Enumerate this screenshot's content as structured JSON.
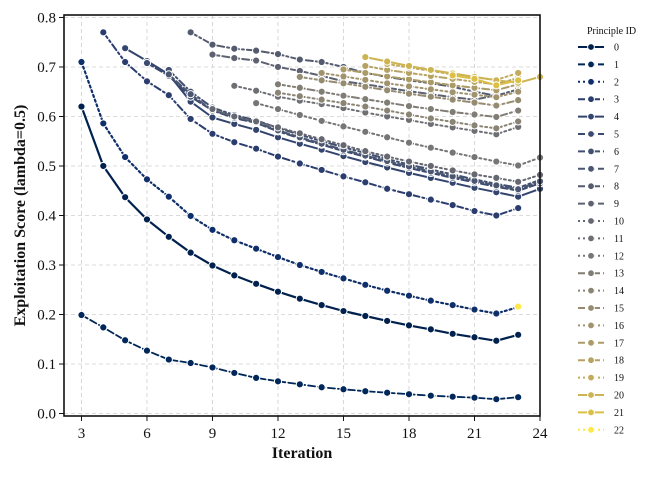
{
  "chart_data": {
    "type": "line",
    "xlabel": "Iteration",
    "ylabel": "Exploitation Score (lambda=0.5)",
    "xlim": [
      2.2,
      24
    ],
    "ylim": [
      -0.005,
      0.805
    ],
    "xticks": [
      3,
      6,
      9,
      12,
      15,
      18,
      21,
      24
    ],
    "yticks": [
      0.0,
      0.1,
      0.2,
      0.3,
      0.4,
      0.5,
      0.6,
      0.7,
      0.8
    ],
    "grid": true,
    "legend": {
      "title": "Principle ID",
      "position": "outside-right"
    },
    "series": [
      {
        "name": "0",
        "color": "#00204d",
        "dash": "solid",
        "width": 2.2,
        "start": 3,
        "values": [
          0.62,
          0.5,
          0.437,
          0.392,
          0.357,
          0.325,
          0.299,
          0.279,
          0.262,
          0.246,
          0.232,
          0.219,
          0.207,
          0.197,
          0.187,
          0.178,
          0.17,
          0.161,
          0.154,
          0.147,
          0.159
        ]
      },
      {
        "name": "1",
        "color": "#00275a",
        "dash": "longdash",
        "width": 1.8,
        "start": 3,
        "values": [
          0.199,
          0.174,
          0.148,
          0.127,
          0.109,
          0.102,
          0.093,
          0.082,
          0.072,
          0.065,
          0.059,
          0.053,
          0.049,
          0.045,
          0.042,
          0.039,
          0.036,
          0.034,
          0.032,
          0.029,
          0.033
        ]
      },
      {
        "name": "2",
        "color": "#0f2f6b",
        "dash": "dot",
        "width": 2.2,
        "start": 3,
        "values": [
          0.71,
          0.586,
          0.518,
          0.473,
          0.438,
          0.399,
          0.371,
          0.35,
          0.333,
          0.316,
          0.3,
          0.286,
          0.273,
          0.26,
          0.248,
          0.238,
          0.228,
          0.219,
          0.21,
          0.202,
          0.215
        ]
      },
      {
        "name": "3",
        "color": "#2a3d6e",
        "dash": "dashdot",
        "width": 2,
        "start": 4,
        "values": [
          0.77,
          0.71,
          0.671,
          0.643,
          0.595,
          0.565,
          0.548,
          0.535,
          0.519,
          0.505,
          0.492,
          0.479,
          0.467,
          0.454,
          0.443,
          0.432,
          0.421,
          0.409,
          0.4,
          0.415
        ]
      },
      {
        "name": "4",
        "color": "#33446e",
        "dash": "solid",
        "width": 2,
        "start": 5,
        "values": [
          0.738,
          0.712,
          0.685,
          0.63,
          0.598,
          0.585,
          0.573,
          0.558,
          0.545,
          0.533,
          0.52,
          0.508,
          0.497,
          0.486,
          0.476,
          0.466,
          0.456,
          0.447,
          0.438,
          0.454
        ]
      },
      {
        "name": "5",
        "color": "#3a4a70",
        "dash": "longdash",
        "width": 2,
        "start": 6,
        "values": [
          0.708,
          0.682,
          0.64,
          0.612,
          0.597,
          0.587,
          0.57,
          0.556,
          0.543,
          0.53,
          0.519,
          0.507,
          0.496,
          0.486,
          0.476,
          0.467,
          0.458,
          0.45,
          0.465
        ]
      },
      {
        "name": "6",
        "color": "#414f71",
        "dash": "dashdot",
        "width": 2,
        "start": 7,
        "values": [
          0.694,
          0.65,
          0.618,
          0.603,
          0.592,
          0.577,
          0.563,
          0.55,
          0.538,
          0.526,
          0.514,
          0.503,
          0.493,
          0.483,
          0.473,
          0.464,
          0.456,
          0.472
        ]
      },
      {
        "name": "7",
        "color": "#4b5670",
        "dash": "longdash",
        "width": 2,
        "start": 7,
        "values": [
          0.685,
          0.645,
          0.612,
          0.6,
          0.588,
          0.572,
          0.558,
          0.545,
          0.533,
          0.521,
          0.51,
          0.499,
          0.489,
          0.479,
          0.47,
          0.461,
          0.453,
          0.469
        ]
      },
      {
        "name": "8",
        "color": "#555b6e",
        "dash": "dashdot",
        "width": 2,
        "start": 8,
        "values": [
          0.77,
          0.745,
          0.737,
          0.733,
          0.726,
          0.715,
          0.71,
          0.7,
          0.688,
          0.68,
          0.673,
          0.667,
          0.66,
          0.65,
          0.642,
          0.655
        ]
      },
      {
        "name": "9",
        "color": "#5d6170",
        "dash": "longdash",
        "width": 2,
        "start": 9,
        "values": [
          0.725,
          0.718,
          0.713,
          0.7,
          0.692,
          0.682,
          0.671,
          0.665,
          0.658,
          0.651,
          0.645,
          0.639,
          0.634,
          0.643
        ]
      },
      {
        "name": "10",
        "color": "#656871",
        "dash": "dot",
        "width": 2,
        "start": 9,
        "values": [
          0.615,
          0.6,
          0.59,
          0.578,
          0.566,
          0.554,
          0.542,
          0.53,
          0.519,
          0.509,
          0.5,
          0.491,
          0.483,
          0.476,
          0.468,
          0.482
        ]
      },
      {
        "name": "11",
        "color": "#6d6f73",
        "dash": "dot",
        "width": 2,
        "start": 10,
        "values": [
          0.662,
          0.652,
          0.64,
          0.632,
          0.625,
          0.617,
          0.608,
          0.6,
          0.593,
          0.585,
          0.578,
          0.571,
          0.564,
          0.579
        ]
      },
      {
        "name": "12",
        "color": "#767676",
        "dash": "dot",
        "width": 2,
        "start": 11,
        "values": [
          0.627,
          0.615,
          0.603,
          0.591,
          0.58,
          0.569,
          0.558,
          0.547,
          0.537,
          0.527,
          0.518,
          0.509,
          0.501,
          0.517
        ]
      },
      {
        "name": "13",
        "color": "#807d75",
        "dash": "dashdot",
        "width": 2,
        "start": 12,
        "values": [
          0.665,
          0.658,
          0.65,
          0.642,
          0.635,
          0.628,
          0.621,
          0.615,
          0.609,
          0.604,
          0.599,
          0.612
        ]
      },
      {
        "name": "14",
        "color": "#8a8474",
        "dash": "dot",
        "width": 2,
        "start": 12,
        "values": [
          0.648,
          0.641,
          0.634,
          0.627,
          0.62,
          0.612,
          0.604,
          0.596,
          0.589,
          0.582,
          0.576,
          0.59
        ]
      },
      {
        "name": "15",
        "color": "#958b71",
        "dash": "dashdot",
        "width": 2,
        "start": 13,
        "values": [
          0.68,
          0.673,
          0.667,
          0.66,
          0.653,
          0.646,
          0.64,
          0.634,
          0.628,
          0.622,
          0.633
        ]
      },
      {
        "name": "16",
        "color": "#a0936d",
        "dash": "dot",
        "width": 2,
        "start": 14,
        "values": [
          0.688,
          0.681,
          0.674,
          0.667,
          0.661,
          0.655,
          0.649,
          0.644,
          0.639,
          0.65
        ]
      },
      {
        "name": "17",
        "color": "#ab9b68",
        "dash": "longdash",
        "width": 2,
        "start": 15,
        "values": [
          0.695,
          0.688,
          0.681,
          0.675,
          0.669,
          0.663,
          0.658,
          0.653,
          0.665
        ]
      },
      {
        "name": "18",
        "color": "#b6a363",
        "dash": "dashdot",
        "width": 2,
        "start": 16,
        "values": [
          0.702,
          0.694,
          0.688,
          0.682,
          0.676,
          0.67,
          0.665,
          0.678
        ]
      },
      {
        "name": "19",
        "color": "#c2ab5c",
        "dash": "dot",
        "width": 2,
        "start": 17,
        "values": [
          0.706,
          0.699,
          0.692,
          0.685,
          0.679,
          0.674,
          0.688
        ]
      },
      {
        "name": "20",
        "color": "#cdb452",
        "dash": "solid",
        "width": 2,
        "start": 16,
        "values": [
          0.72,
          0.711,
          0.702,
          0.694,
          0.687,
          0.68,
          0.673,
          0.668,
          0.68
        ]
      },
      {
        "name": "21",
        "color": "#dcbf45",
        "dash": "solid",
        "width": 2,
        "start": 20,
        "values": [
          0.683,
          0.676,
          0.663,
          0.673
        ]
      },
      {
        "name": "22",
        "color": "#fde848",
        "dash": "dot",
        "width": 2,
        "start": 23,
        "values": [
          0.216
        ]
      }
    ]
  }
}
